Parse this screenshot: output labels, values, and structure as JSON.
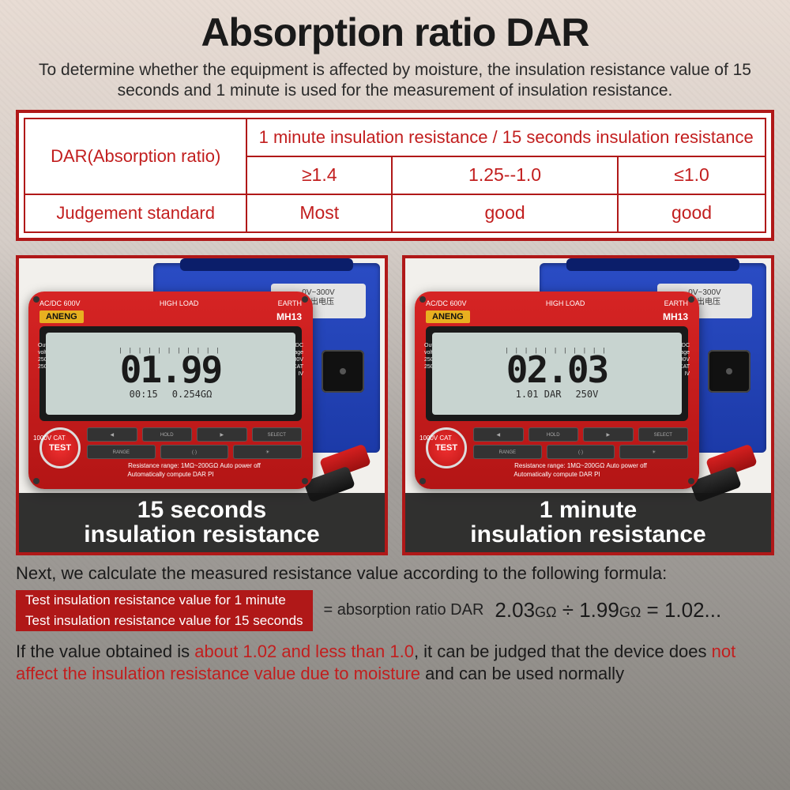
{
  "title": "Absorption ratio DAR",
  "subtitle": "To determine whether the equipment is affected by moisture, the insulation resistance value of 15 seconds and 1 minute is used for the measurement of insulation resistance.",
  "table": {
    "r1c1": "DAR(Absorption ratio)",
    "r1c2": "1 minute insulation resistance / 15 seconds insulation resistance",
    "r2a": "≥1.4",
    "r2b": "1.25--1.0",
    "r2c": "≤1.0",
    "r3c1": "Judgement standard",
    "r3a": "Most",
    "r3b": "good",
    "r3c": "good"
  },
  "bluebox": {
    "plate_top": "0V~300V",
    "plate_bottom": "输出电压"
  },
  "meter": {
    "brand": "ANENG",
    "model": "MH13",
    "top_left": "AC/DC 600V",
    "top_mid": "HIGH LOAD",
    "top_right": "EARTH",
    "side_left": "Output voltage:\n250V-2500V",
    "side_right": "AC/DC voltage\n10V-600V\n\n500V CAT IV",
    "arc_marks": "| | | | | | | | | | |",
    "test": "TEST",
    "range_txt": "Resistance range: 1MΩ~200GΩ   Auto power off",
    "auto_txt": "Automatically compute DAR PI",
    "cat": "1000V CAT",
    "btns": [
      "◀",
      "HOLD",
      "▶",
      "SELECT",
      "RANGE",
      "(·)",
      "☀"
    ]
  },
  "left": {
    "big": "01.99",
    "small1": "00:15",
    "small2": "0.254",
    "unit_small": "GΩ",
    "caption1": "15 seconds",
    "caption2": "insulation resistance"
  },
  "right": {
    "big": "02.03",
    "small1": "1.01",
    "small1_lbl": "DAR",
    "small2": "250",
    "unit_small": "V",
    "caption1": "1 minute",
    "caption2": "insulation resistance"
  },
  "next": "Next, we calculate the measured resistance value according to the following formula:",
  "frac_top": "Test insulation resistance value for 1 minute",
  "frac_bot": "Test insulation resistance value for 15 seconds",
  "eq_label": "= absorption ratio DAR",
  "calc": {
    "a": "2.03",
    "b": "1.99",
    "r": "1.02...",
    "unit": "GΩ"
  },
  "conclude_pre": "If the value obtained is ",
  "conclude_hl1": "about 1.02 and less than 1.0",
  "conclude_mid": ", it can be judged that the device does ",
  "conclude_hl2": "not affect the insulation resistance value due to moisture",
  "conclude_post": " and can be used normally"
}
